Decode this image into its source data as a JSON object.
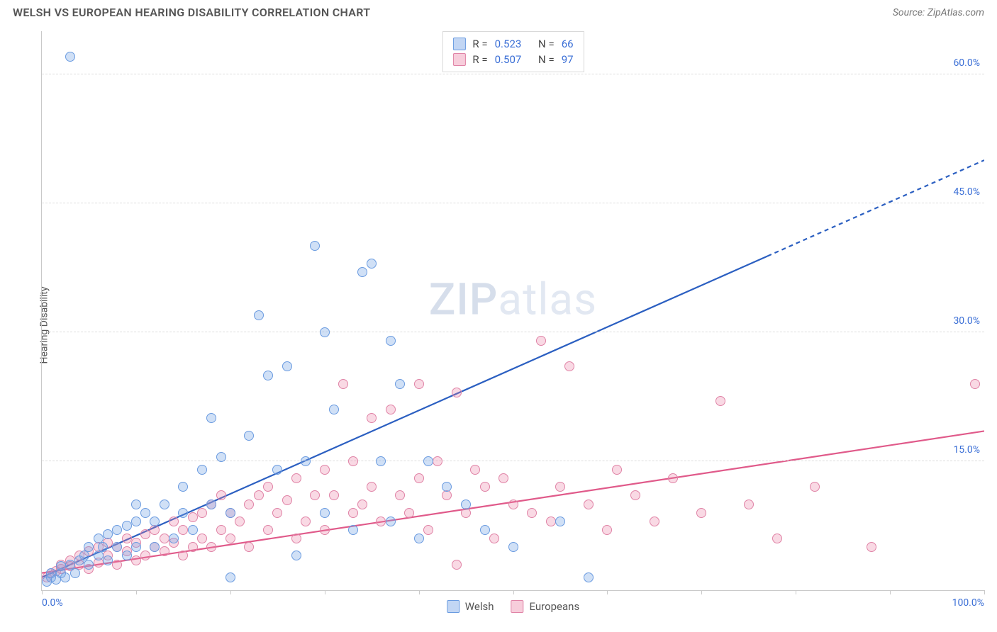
{
  "header": {
    "title": "WELSH VS EUROPEAN HEARING DISABILITY CORRELATION CHART",
    "source": "Source: ZipAtlas.com"
  },
  "chart": {
    "type": "scatter",
    "ylabel": "Hearing Disability",
    "xlim": [
      0,
      100
    ],
    "ylim": [
      0,
      65
    ],
    "y_ticks": [
      15.0,
      30.0,
      45.0,
      60.0
    ],
    "y_tick_labels": [
      "15.0%",
      "30.0%",
      "45.0%",
      "60.0%"
    ],
    "x_ticks": [
      0,
      10,
      20,
      30,
      40,
      50,
      60,
      70,
      80,
      90,
      100
    ],
    "x_tick_labels_shown": {
      "0": "0.0%",
      "100": "100.0%"
    },
    "background_color": "#ffffff",
    "grid_color": "#dcdcdc",
    "axis_color": "#c9c9c9",
    "tick_label_color": "#3b6fd6",
    "watermark": "ZIPatlas",
    "series": {
      "welsh": {
        "label": "Welsh",
        "fill_color": "rgba(120,165,230,0.35)",
        "stroke_color": "#6a9be0",
        "line_color": "#2b5fc1",
        "R": "0.523",
        "N": "66",
        "trend": {
          "x1": 0,
          "y1": 1.5,
          "x2": 100,
          "y2": 50,
          "solid_until_x": 77
        },
        "points": [
          [
            0.5,
            1
          ],
          [
            1,
            1.5
          ],
          [
            1,
            2
          ],
          [
            1.5,
            1.2
          ],
          [
            2,
            2
          ],
          [
            2,
            2.8
          ],
          [
            2.5,
            1.5
          ],
          [
            3,
            3
          ],
          [
            3,
            62
          ],
          [
            3.5,
            2
          ],
          [
            4,
            3.5
          ],
          [
            4.5,
            4
          ],
          [
            5,
            3
          ],
          [
            5,
            5
          ],
          [
            6,
            4
          ],
          [
            6,
            6
          ],
          [
            6.5,
            5
          ],
          [
            7,
            3.5
          ],
          [
            7,
            6.5
          ],
          [
            8,
            5
          ],
          [
            8,
            7
          ],
          [
            9,
            4
          ],
          [
            9,
            7.5
          ],
          [
            10,
            5
          ],
          [
            10,
            8
          ],
          [
            10,
            10
          ],
          [
            11,
            9
          ],
          [
            12,
            5
          ],
          [
            12,
            8
          ],
          [
            13,
            10
          ],
          [
            14,
            6
          ],
          [
            15,
            9
          ],
          [
            15,
            12
          ],
          [
            16,
            7
          ],
          [
            17,
            14
          ],
          [
            18,
            10
          ],
          [
            18,
            20
          ],
          [
            19,
            15.5
          ],
          [
            20,
            1.5
          ],
          [
            20,
            9
          ],
          [
            22,
            18
          ],
          [
            23,
            32
          ],
          [
            24,
            25
          ],
          [
            25,
            14
          ],
          [
            26,
            26
          ],
          [
            27,
            4
          ],
          [
            28,
            15
          ],
          [
            29,
            40
          ],
          [
            30,
            9
          ],
          [
            30,
            30
          ],
          [
            31,
            21
          ],
          [
            33,
            7
          ],
          [
            34,
            37
          ],
          [
            35,
            38
          ],
          [
            36,
            15
          ],
          [
            37,
            8
          ],
          [
            37,
            29
          ],
          [
            38,
            24
          ],
          [
            40,
            6
          ],
          [
            41,
            15
          ],
          [
            43,
            12
          ],
          [
            45,
            10
          ],
          [
            47,
            7
          ],
          [
            50,
            5
          ],
          [
            55,
            8
          ],
          [
            58,
            1.5
          ]
        ]
      },
      "europeans": {
        "label": "Europeans",
        "fill_color": "rgba(235,130,165,0.30)",
        "stroke_color": "#e083a6",
        "line_color": "#e05a8a",
        "R": "0.507",
        "N": "97",
        "trend": {
          "x1": 0,
          "y1": 2,
          "x2": 100,
          "y2": 18.5,
          "solid_until_x": 100
        },
        "points": [
          [
            0.5,
            1.5
          ],
          [
            1,
            2
          ],
          [
            1.5,
            2.2
          ],
          [
            2,
            2.5
          ],
          [
            2,
            3
          ],
          [
            3,
            2.8
          ],
          [
            3,
            3.5
          ],
          [
            4,
            3
          ],
          [
            4,
            4
          ],
          [
            5,
            2.5
          ],
          [
            5,
            4.5
          ],
          [
            6,
            3.2
          ],
          [
            6,
            5
          ],
          [
            7,
            4
          ],
          [
            7,
            5.5
          ],
          [
            8,
            3
          ],
          [
            8,
            5
          ],
          [
            9,
            4.5
          ],
          [
            9,
            6
          ],
          [
            10,
            3.5
          ],
          [
            10,
            5.5
          ],
          [
            11,
            4
          ],
          [
            11,
            6.5
          ],
          [
            12,
            5
          ],
          [
            12,
            7
          ],
          [
            13,
            4.5
          ],
          [
            13,
            6
          ],
          [
            14,
            5.5
          ],
          [
            14,
            8
          ],
          [
            15,
            4
          ],
          [
            15,
            7
          ],
          [
            16,
            5
          ],
          [
            16,
            8.5
          ],
          [
            17,
            6
          ],
          [
            17,
            9
          ],
          [
            18,
            5
          ],
          [
            18,
            10
          ],
          [
            19,
            7
          ],
          [
            19,
            11
          ],
          [
            20,
            6
          ],
          [
            20,
            9
          ],
          [
            21,
            8
          ],
          [
            22,
            5
          ],
          [
            22,
            10
          ],
          [
            23,
            11
          ],
          [
            24,
            7
          ],
          [
            24,
            12
          ],
          [
            25,
            9
          ],
          [
            26,
            10.5
          ],
          [
            27,
            6
          ],
          [
            27,
            13
          ],
          [
            28,
            8
          ],
          [
            29,
            11
          ],
          [
            30,
            7
          ],
          [
            30,
            14
          ],
          [
            31,
            11
          ],
          [
            32,
            24
          ],
          [
            33,
            9
          ],
          [
            33,
            15
          ],
          [
            34,
            10
          ],
          [
            35,
            12
          ],
          [
            35,
            20
          ],
          [
            36,
            8
          ],
          [
            37,
            21
          ],
          [
            38,
            11
          ],
          [
            39,
            9
          ],
          [
            40,
            13
          ],
          [
            40,
            24
          ],
          [
            41,
            7
          ],
          [
            42,
            15
          ],
          [
            43,
            11
          ],
          [
            44,
            3
          ],
          [
            44,
            23
          ],
          [
            45,
            9
          ],
          [
            46,
            14
          ],
          [
            47,
            12
          ],
          [
            48,
            6
          ],
          [
            49,
            13
          ],
          [
            50,
            10
          ],
          [
            52,
            9
          ],
          [
            53,
            29
          ],
          [
            54,
            8
          ],
          [
            55,
            12
          ],
          [
            56,
            26
          ],
          [
            58,
            10
          ],
          [
            60,
            7
          ],
          [
            61,
            14
          ],
          [
            63,
            11
          ],
          [
            65,
            8
          ],
          [
            67,
            13
          ],
          [
            70,
            9
          ],
          [
            72,
            22
          ],
          [
            75,
            10
          ],
          [
            78,
            6
          ],
          [
            82,
            12
          ],
          [
            88,
            5
          ],
          [
            99,
            24
          ]
        ]
      }
    },
    "stats_box": {
      "rows": [
        {
          "series": "welsh",
          "r_label": "R =",
          "r_val": "0.523",
          "n_label": "N =",
          "n_val": "66"
        },
        {
          "series": "europeans",
          "r_label": "R =",
          "r_val": "0.507",
          "n_label": "N =",
          "n_val": "97"
        }
      ]
    }
  }
}
